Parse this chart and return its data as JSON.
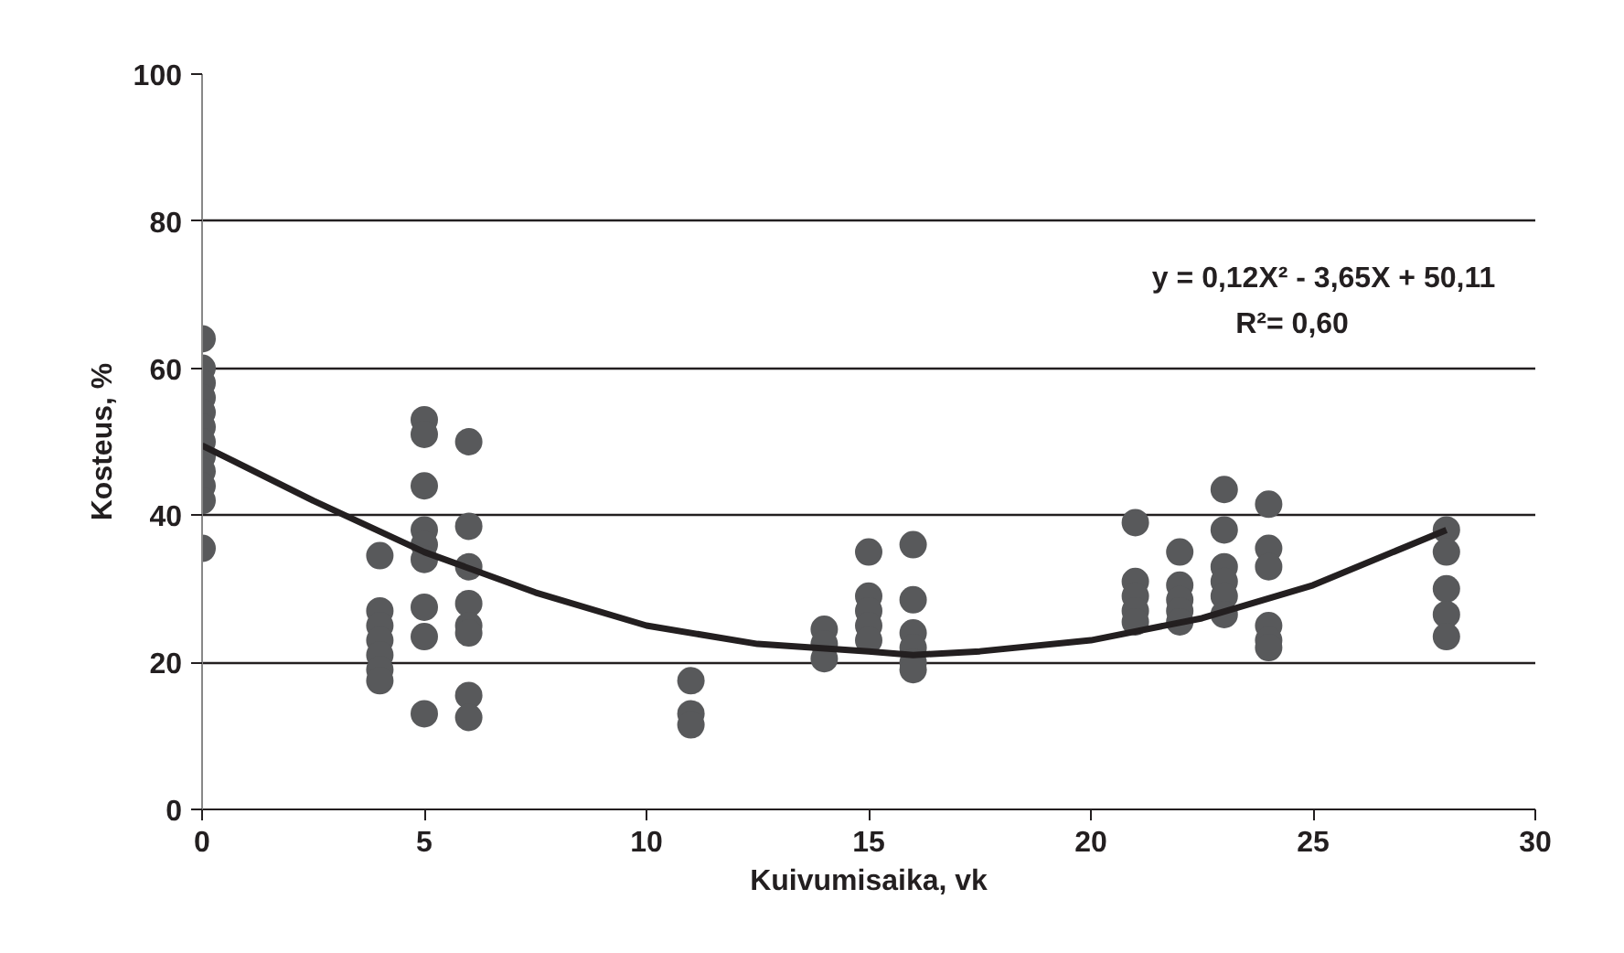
{
  "chart_data": {
    "type": "scatter",
    "xlabel": "Kuivumisaika, vk",
    "ylabel": "Kosteus, %",
    "xlim": [
      0,
      30
    ],
    "ylim": [
      0,
      100
    ],
    "xticks": [
      0,
      5,
      10,
      15,
      20,
      25,
      30
    ],
    "yticks": [
      0,
      20,
      40,
      60,
      80,
      100
    ],
    "grid": "y",
    "annotations": [
      "y = 0,12X² - 3,65X + 50,11",
      "R²= 0,60"
    ],
    "series": [
      {
        "marker": "circle",
        "color": "#58595b",
        "x": [
          0,
          0,
          0,
          0,
          0,
          0,
          0,
          0,
          0,
          0,
          0,
          0,
          4,
          4,
          4,
          4,
          4,
          4,
          4,
          5,
          5,
          5,
          5,
          5,
          5,
          5,
          5,
          5,
          6,
          6,
          6,
          6,
          6,
          6,
          6,
          6,
          11,
          11,
          11,
          14,
          14,
          14,
          15,
          15,
          15,
          15,
          15,
          16,
          16,
          16,
          16,
          16,
          16,
          21,
          21,
          21,
          21,
          21,
          22,
          22,
          22,
          22,
          22,
          23,
          23,
          23,
          23,
          23,
          23,
          24,
          24,
          24,
          24,
          24,
          24,
          28,
          28,
          28,
          28,
          28
        ],
        "values": [
          64,
          60,
          58,
          56,
          54,
          52,
          50,
          48,
          46,
          44,
          42,
          35.5,
          34.5,
          27,
          25,
          23,
          21,
          19,
          17.5,
          53,
          51,
          44,
          38,
          36,
          34,
          27.5,
          23.5,
          13,
          50,
          38.5,
          33,
          28,
          25,
          24,
          15.5,
          12.5,
          17.5,
          13,
          11.5,
          24.5,
          22.5,
          20.5,
          35,
          29,
          27,
          25,
          23,
          36,
          28.5,
          24,
          22,
          20,
          19,
          39,
          31,
          29,
          27,
          25.5,
          35,
          30.5,
          28.5,
          27,
          25.5,
          43.5,
          38,
          33,
          31,
          29,
          26.5,
          41.5,
          35.5,
          33,
          25,
          23,
          22,
          38,
          35,
          30,
          26.5,
          23.5
        ]
      },
      {
        "type": "line",
        "marker": "none",
        "color": "#231f20",
        "x": [
          0,
          2.5,
          5,
          7.5,
          10,
          12.5,
          15,
          16,
          17.5,
          20,
          22.5,
          25,
          28
        ],
        "values": [
          49.5,
          42,
          35,
          29.5,
          25,
          22.5,
          21.5,
          21,
          21.5,
          23,
          26,
          30.5,
          38
        ]
      }
    ]
  }
}
